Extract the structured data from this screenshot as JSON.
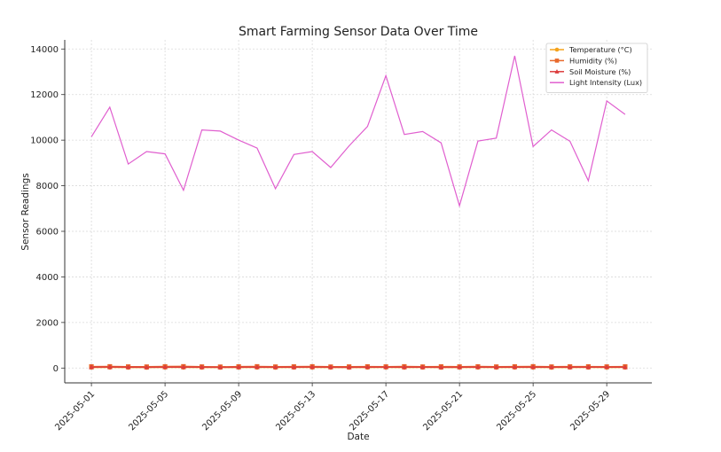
{
  "chart_data": {
    "type": "line",
    "title": "Smart Farming Sensor Data Over Time",
    "xlabel": "Date",
    "ylabel": "Sensor Readings",
    "ylim": [
      -650,
      14400
    ],
    "yticks": [
      0,
      2000,
      4000,
      6000,
      8000,
      10000,
      12000,
      14000
    ],
    "xtick_labels": [
      "2025-05-01",
      "2025-05-05",
      "2025-05-09",
      "2025-05-13",
      "2025-05-17",
      "2025-05-21",
      "2025-05-25",
      "2025-05-29"
    ],
    "xtick_day_index": [
      0,
      4,
      8,
      12,
      16,
      20,
      24,
      28
    ],
    "grid": true,
    "legend_position": "top-right",
    "x": [
      "2025-05-01",
      "2025-05-02",
      "2025-05-03",
      "2025-05-04",
      "2025-05-05",
      "2025-05-06",
      "2025-05-07",
      "2025-05-08",
      "2025-05-09",
      "2025-05-10",
      "2025-05-11",
      "2025-05-12",
      "2025-05-13",
      "2025-05-14",
      "2025-05-15",
      "2025-05-16",
      "2025-05-17",
      "2025-05-18",
      "2025-05-19",
      "2025-05-20",
      "2025-05-21",
      "2025-05-22",
      "2025-05-23",
      "2025-05-24",
      "2025-05-25",
      "2025-05-26",
      "2025-05-27",
      "2025-05-28",
      "2025-05-29",
      "2025-05-30"
    ],
    "series": [
      {
        "name": "Temperature (°C)",
        "color": "#f5a21b",
        "marker": "circle",
        "values": [
          28,
          30,
          27,
          26,
          29,
          31,
          27,
          25,
          28,
          30,
          26,
          29,
          31,
          27,
          25,
          28,
          30,
          27,
          29,
          26,
          28,
          30,
          27,
          29,
          31,
          26,
          28,
          30,
          27,
          29
        ]
      },
      {
        "name": "Humidity (%)",
        "color": "#e8692c",
        "marker": "square",
        "values": [
          65,
          70,
          62,
          58,
          68,
          72,
          60,
          55,
          66,
          71,
          59,
          64,
          69,
          57,
          61,
          67,
          63,
          70,
          58,
          65,
          62,
          68,
          60,
          66,
          71,
          59,
          64,
          67,
          61,
          65
        ]
      },
      {
        "name": "Soil Moisture (%)",
        "color": "#dc3d3d",
        "marker": "triangle",
        "values": [
          40,
          45,
          38,
          35,
          42,
          44,
          39,
          36,
          41,
          43,
          37,
          40,
          45,
          38,
          35,
          42,
          44,
          39,
          41,
          36,
          40,
          43,
          38,
          42,
          44,
          37,
          41,
          39,
          43,
          40
        ]
      },
      {
        "name": "Light Intensity (Lux)",
        "color": "#e05fcf",
        "marker": "none",
        "values": [
          10150,
          11450,
          8950,
          9500,
          9400,
          7800,
          10450,
          10400,
          10000,
          9650,
          7870,
          9370,
          9500,
          8800,
          9750,
          10600,
          12830,
          10250,
          10380,
          9880,
          7120,
          9960,
          10090,
          13700,
          9720,
          10450,
          9950,
          8220,
          11720,
          11130
        ]
      }
    ]
  }
}
